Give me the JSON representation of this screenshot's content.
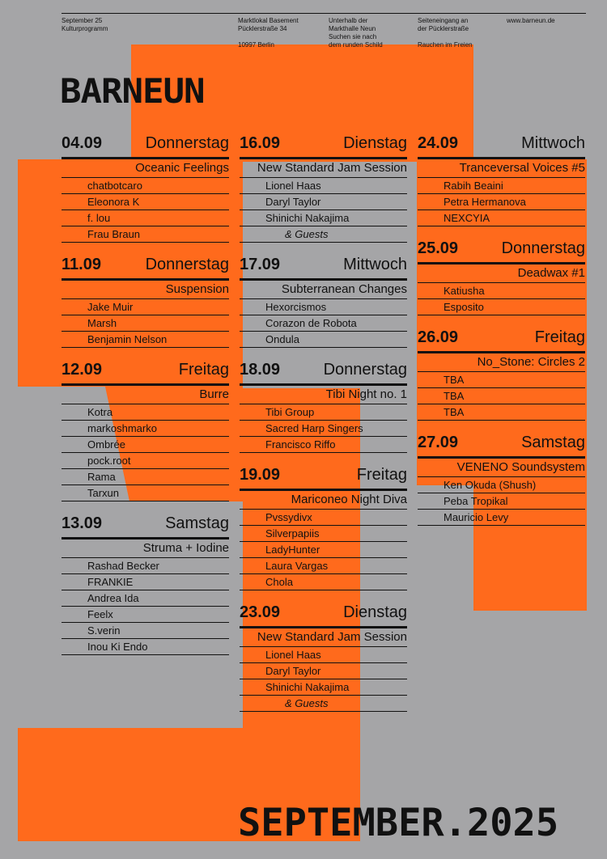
{
  "header": {
    "columns": [
      [
        [
          "September 25",
          "Kulturprogramm"
        ]
      ],
      [
        [
          "Marktlokal Basement",
          "Pücklerstraße 34"
        ],
        [
          "10997 Berlin"
        ]
      ],
      [
        [
          "Unterhalb der",
          "Markthalle Neun",
          "Suchen sie nach",
          "dem runden Schild"
        ]
      ],
      [
        [
          "Seiteneingang an",
          "der Pücklerstraße"
        ],
        [
          "Rauchen im Freien"
        ]
      ],
      [
        [
          "www.barneun.de"
        ]
      ]
    ]
  },
  "logo": "BARNEUN",
  "columns": [
    [
      {
        "date": "04.09",
        "day": "Donnerstag",
        "title": "Oceanic Feelings",
        "artists": [
          "chatbotcaro",
          "Eleonora K",
          "f. lou",
          "Frau Braun"
        ]
      },
      {
        "date": "11.09",
        "day": "Donnerstag",
        "title": "Suspension",
        "artists": [
          "Jake Muir",
          "Marsh",
          "Benjamin Nelson"
        ]
      },
      {
        "date": "12.09",
        "day": "Freitag",
        "title": "Burre",
        "artists": [
          "Kotra",
          "markoshmarko",
          "Ombrée",
          "pock.root",
          "Rama",
          "Tarxun"
        ]
      },
      {
        "date": "13.09",
        "day": "Samstag",
        "title": "Struma + Iodine",
        "artists": [
          "Rashad Becker",
          "FRANKIE",
          "Andrea Ida",
          "Feelx",
          "S.verin",
          "Inou Ki Endo"
        ]
      }
    ],
    [
      {
        "date": "16.09",
        "day": "Dienstag",
        "title": "New Standard Jam Session",
        "artists": [
          "Lionel Haas",
          "Daryl Taylor",
          "Shinichi Nakajima"
        ],
        "note": "& Guests"
      },
      {
        "date": "17.09",
        "day": "Mittwoch",
        "title": "Subterranean Changes",
        "artists": [
          "Hexorcismos",
          "Corazon de Robota",
          "Ondula"
        ]
      },
      {
        "date": "18.09",
        "day": "Donnerstag",
        "title": "Tibi Night no. 1",
        "artists": [
          "Tibi Group",
          "Sacred Harp Singers",
          "Francisco Riffo"
        ]
      },
      {
        "date": "19.09",
        "day": "Freitag",
        "title": "Mariconeo Night Diva",
        "artists": [
          "Pvssydivx",
          "Silverpapiis",
          "LadyHunter",
          "Laura Vargas",
          "Chola"
        ]
      },
      {
        "date": "23.09",
        "day": "Dienstag",
        "title": "New Standard Jam Session",
        "artists": [
          "Lionel Haas",
          "Daryl Taylor",
          "Shinichi Nakajima"
        ],
        "note": "& Guests"
      }
    ],
    [
      {
        "date": "24.09",
        "day": "Mittwoch",
        "title": "Tranceversal Voices #5",
        "artists": [
          "Rabih Beaini",
          "Petra Hermanova",
          "NEXCYIA"
        ]
      },
      {
        "date": "25.09",
        "day": "Donnerstag",
        "title": "Deadwax #1",
        "artists": [
          "Katiusha",
          "Esposito"
        ]
      },
      {
        "date": "26.09",
        "day": "Freitag",
        "title": "No_Stone: Circles 2",
        "artists": [
          "TBA",
          "TBA",
          "TBA"
        ]
      },
      {
        "date": "27.09",
        "day": "Samstag",
        "title": "VENENO Soundsystem",
        "artists": [
          "Ken Okuda (Shush)",
          "Peba Tropikal",
          "Mauricio Levy"
        ]
      }
    ]
  ],
  "footer": "SEPTEMBER.2025"
}
